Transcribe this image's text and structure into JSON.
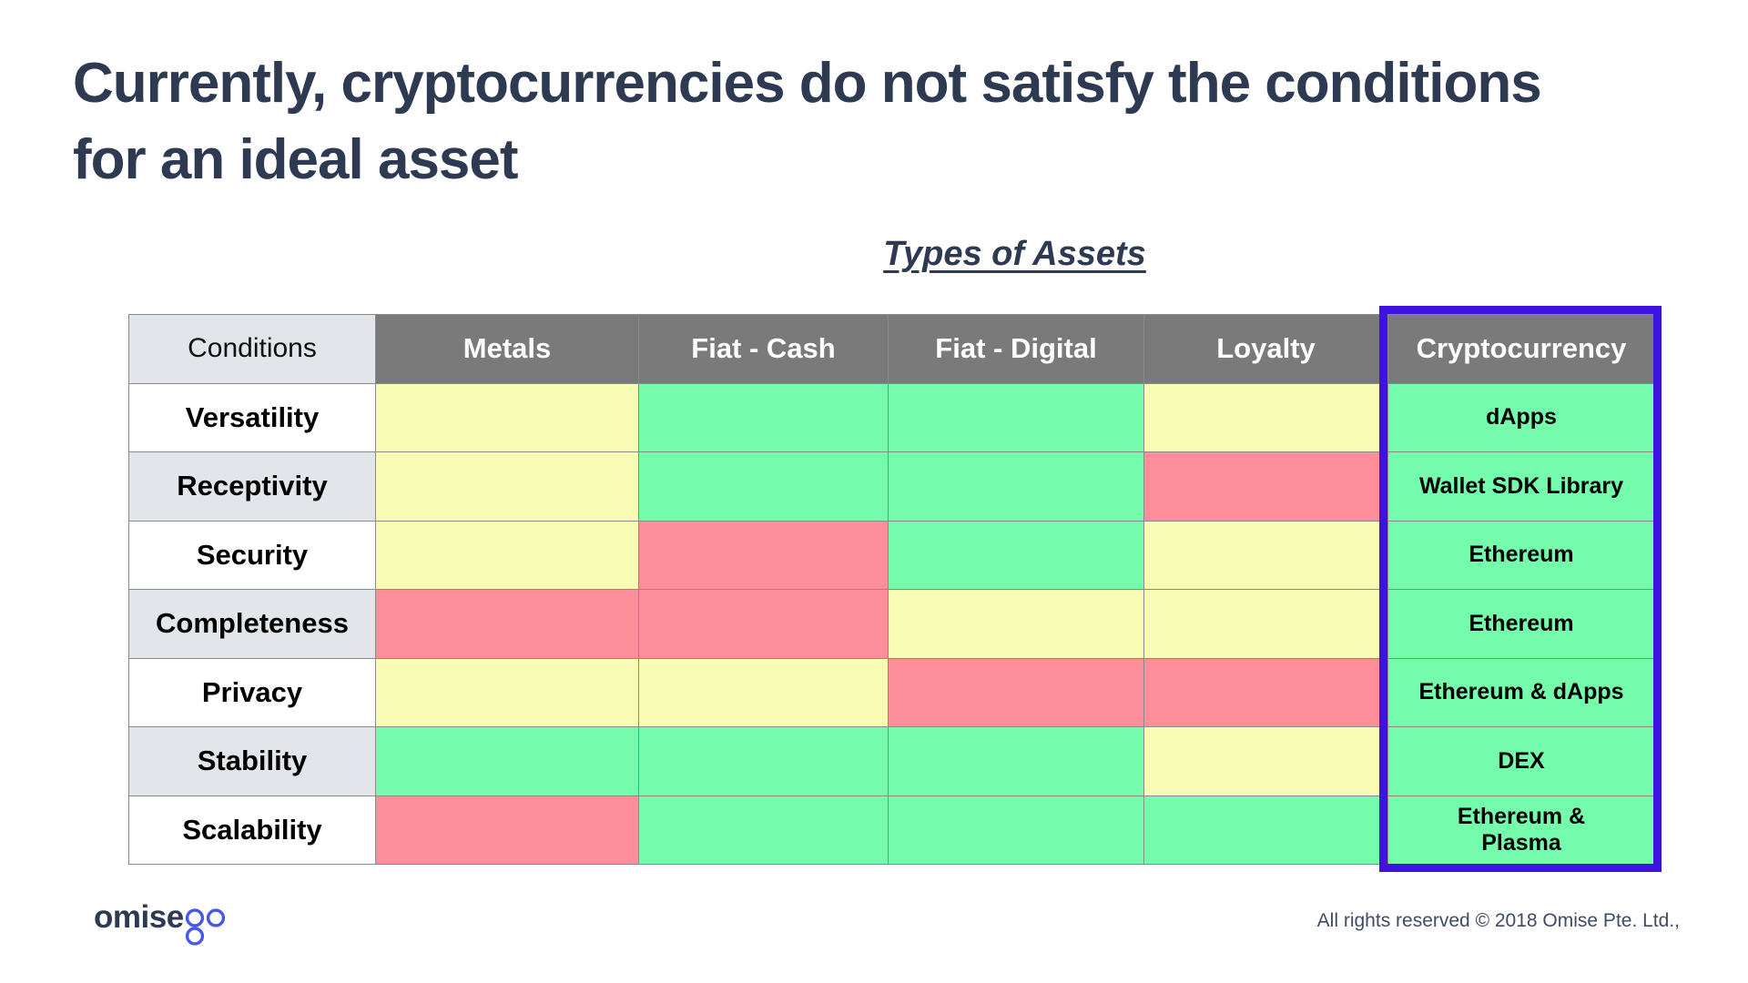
{
  "slide": {
    "title": "Currently, cryptocurrencies do not satisfy the conditions for an ideal asset",
    "subtitle": "Types of Assets"
  },
  "table": {
    "corner_label": "Conditions",
    "asset_columns": [
      "Metals",
      "Fiat - Cash",
      "Fiat - Digital",
      "Loyalty",
      "Cryptocurrency"
    ],
    "highlighted_column": "Cryptocurrency",
    "rows": [
      {
        "condition": "Versatility",
        "statuses": [
          "partial",
          "good",
          "good",
          "partial",
          "good"
        ],
        "crypto_label": "dApps"
      },
      {
        "condition": "Receptivity",
        "statuses": [
          "partial",
          "good",
          "good",
          "bad",
          "good"
        ],
        "crypto_label": "Wallet SDK Library"
      },
      {
        "condition": "Security",
        "statuses": [
          "partial",
          "bad",
          "good",
          "partial",
          "good"
        ],
        "crypto_label": "Ethereum"
      },
      {
        "condition": "Completeness",
        "statuses": [
          "bad",
          "bad",
          "partial",
          "partial",
          "good"
        ],
        "crypto_label": "Ethereum"
      },
      {
        "condition": "Privacy",
        "statuses": [
          "partial",
          "partial",
          "bad",
          "bad",
          "good"
        ],
        "crypto_label": "Ethereum & dApps"
      },
      {
        "condition": "Stability",
        "statuses": [
          "good",
          "good",
          "good",
          "partial",
          "good"
        ],
        "crypto_label": "DEX"
      },
      {
        "condition": "Scalability",
        "statuses": [
          "bad",
          "good",
          "good",
          "good",
          "good"
        ],
        "crypto_label": "Ethereum &\nPlasma"
      }
    ]
  },
  "colors": {
    "status_good": "#74fcac",
    "status_partial": "#f8fcb4",
    "status_bad": "#fe8f9a",
    "header_gray": "#7a7a7a",
    "label_gray": "#e2e5e9",
    "highlight_border": "#3e13e0",
    "title_navy": "#2e3a52",
    "logo_blue": "#4656ee"
  },
  "footer": {
    "logo_text": "omise",
    "logo_suffix": "go",
    "copyright": "All rights reserved © 2018 Omise Pte. Ltd.,"
  }
}
